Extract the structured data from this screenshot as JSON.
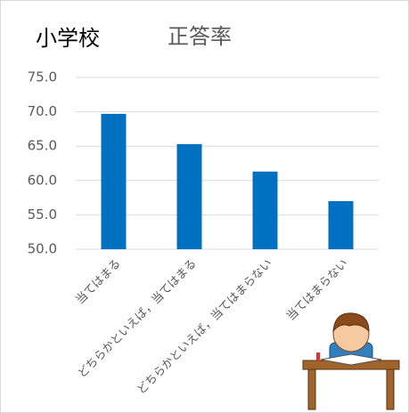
{
  "chart_data": {
    "type": "bar",
    "title": "正答率",
    "annotation": "小学校",
    "categories": [
      "当てはまる",
      "どちらかといえば，当てはまる",
      "どちらかといえば，当てはまらない",
      "当てはまらない"
    ],
    "values": [
      69.7,
      65.3,
      61.3,
      57.0
    ],
    "color": "#0070c0",
    "ylim": [
      50,
      75
    ],
    "yticks": [
      {
        "value": 50,
        "label": "50.0"
      },
      {
        "value": 55,
        "label": "55.0"
      },
      {
        "value": 60,
        "label": "60.0"
      },
      {
        "value": 65,
        "label": "65.0"
      },
      {
        "value": 70,
        "label": "70.0"
      },
      {
        "value": 75,
        "label": "75.0"
      }
    ],
    "grid": true
  }
}
